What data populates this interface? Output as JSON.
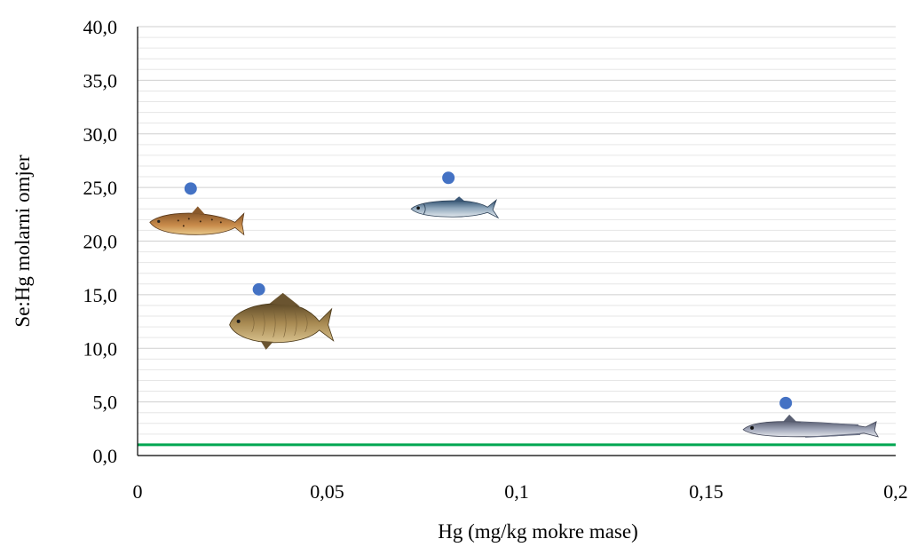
{
  "chart_data": {
    "type": "scatter",
    "xlabel": "Hg (mg/kg mokre mase)",
    "ylabel": "Se:Hg molarni omjer",
    "xlim": [
      0,
      0.2
    ],
    "ylim": [
      0,
      40
    ],
    "x_ticks": [
      "0",
      "0,05",
      "0,1",
      "0,15",
      "0,2"
    ],
    "x_tick_values": [
      0,
      0.05,
      0.1,
      0.15,
      0.2
    ],
    "y_ticks": [
      "0,0",
      "5,0",
      "10,0",
      "15,0",
      "20,0",
      "25,0",
      "30,0",
      "35,0",
      "40,0"
    ],
    "y_tick_values": [
      0,
      5,
      10,
      15,
      20,
      25,
      30,
      35,
      40
    ],
    "grid": {
      "major": true,
      "minor": true,
      "minor_step": 1
    },
    "legend": "none",
    "series": [
      {
        "color": "#4472c4",
        "points": [
          {
            "x": 0.014,
            "y": 24.9
          },
          {
            "x": 0.032,
            "y": 15.5
          },
          {
            "x": 0.082,
            "y": 25.9
          },
          {
            "x": 0.171,
            "y": 4.9
          }
        ]
      }
    ],
    "reference_lines": [
      {
        "axis": "y",
        "value": 1,
        "color": "#00a651"
      }
    ],
    "point_images": [
      "trout-icon",
      "carp-icon",
      "sardine-icon",
      "hake-icon"
    ]
  }
}
